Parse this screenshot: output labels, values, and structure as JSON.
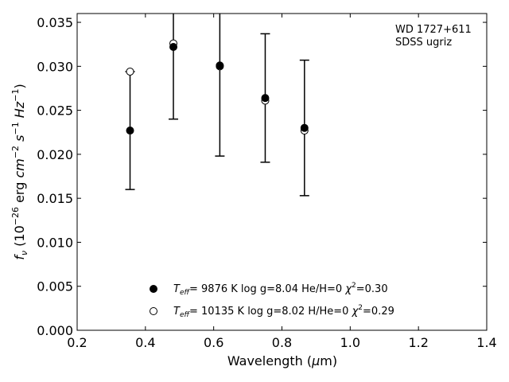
{
  "chart_data": {
    "type": "scatter",
    "x_ticks": [
      "0.2",
      "0.4",
      "0.6",
      "0.8",
      "1.0",
      "1.2",
      "1.4"
    ],
    "y_ticks": [
      "0.000",
      "0.005",
      "0.010",
      "0.015",
      "0.020",
      "0.025",
      "0.030",
      "0.035"
    ],
    "xlim": [
      0.2,
      1.4
    ],
    "ylim": [
      0.0,
      0.036
    ],
    "grid": false,
    "legend_position": "bottom-center",
    "annotation": [
      "WD 1727+611",
      "SDSS ugriz"
    ],
    "observed": {
      "x": [
        0.355,
        0.482,
        0.618,
        0.751,
        0.866
      ],
      "y": [
        0.0227,
        0.0322,
        0.0301,
        0.0264,
        0.023
      ],
      "err": [
        0.0067,
        0.0082,
        0.0103,
        0.0073,
        0.0077
      ]
    },
    "series": [
      {
        "name": "Teff = 9876 K log g=8.04 He/H=0 χ²=0.30",
        "marker": "filled",
        "x": [
          0.355,
          0.482,
          0.618,
          0.751,
          0.866
        ],
        "y": [
          0.0227,
          0.0322,
          0.0301,
          0.0264,
          0.023
        ]
      },
      {
        "name": "Teff = 10135 K log g=8.02 H/He=0 χ²=0.29",
        "marker": "open",
        "x": [
          0.355,
          0.482,
          0.618,
          0.751,
          0.866
        ],
        "y": [
          0.0294,
          0.0326,
          0.03,
          0.0261,
          0.0227
        ]
      }
    ]
  },
  "legend": [
    {
      "teff_prefix": "= 9876 K",
      "params": "log g=8.04  He/H=0",
      "chi": "=0.30"
    },
    {
      "teff_prefix": "= 10135 K",
      "params": "log g=8.02  H/He=0",
      "chi": "=0.29"
    }
  ],
  "colors": {
    "axis": "#000000",
    "marker": "#000000",
    "background": "#ffffff"
  }
}
